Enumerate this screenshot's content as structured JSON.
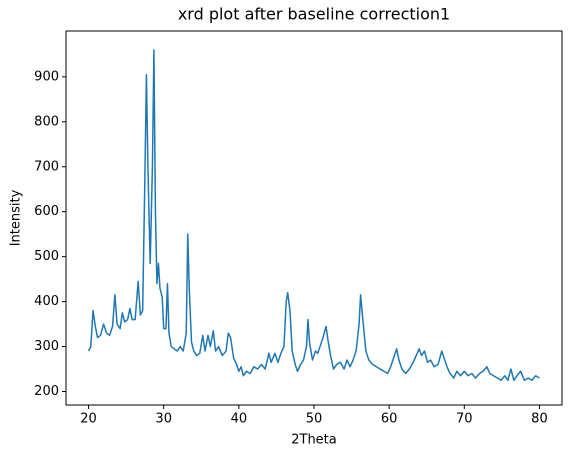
{
  "chart_data": {
    "type": "line",
    "title": "xrd plot after baseline correction1",
    "x_label": "2Theta",
    "y_label": "Intensity",
    "color": "#1f77b4",
    "x": [
      20,
      20.3,
      20.6,
      20.9,
      21.2,
      21.6,
      22,
      22.4,
      22.8,
      23.2,
      23.5,
      23.8,
      24.2,
      24.5,
      24.8,
      25.2,
      25.5,
      25.8,
      26.2,
      26.6,
      26.9,
      27.2,
      27.5,
      27.7,
      27.9,
      28.2,
      28.5,
      28.7,
      28.9,
      29.1,
      29.3,
      29.5,
      29.8,
      30,
      30.3,
      30.5,
      30.7,
      31,
      31.4,
      31.8,
      32.2,
      32.6,
      33,
      33.2,
      33.4,
      33.7,
      34,
      34.4,
      34.8,
      35.2,
      35.5,
      35.9,
      36.2,
      36.6,
      36.9,
      37.3,
      37.8,
      38.3,
      38.6,
      38.9,
      39.3,
      39.7,
      40,
      40.3,
      40.6,
      41,
      41.5,
      42,
      42.5,
      43,
      43.5,
      44,
      44.3,
      44.8,
      45.2,
      45.6,
      46,
      46.3,
      46.5,
      46.8,
      47.1,
      47.5,
      47.8,
      48.2,
      48.6,
      49,
      49.2,
      49.4,
      49.8,
      50.2,
      50.5,
      50.8,
      51.2,
      51.6,
      51.9,
      52.2,
      52.6,
      53,
      53.5,
      54,
      54.4,
      54.8,
      55.2,
      55.6,
      56,
      56.2,
      56.5,
      56.9,
      57.3,
      57.8,
      58.3,
      58.8,
      59.3,
      59.8,
      60.2,
      60.6,
      61,
      61.3,
      61.7,
      62.2,
      62.7,
      63.2,
      63.6,
      64,
      64.3,
      64.7,
      65.1,
      65.5,
      66,
      66.5,
      67,
      67.3,
      67.7,
      68.1,
      68.6,
      69,
      69.5,
      70,
      70.5,
      71,
      71.5,
      72,
      72.5,
      73,
      73.4,
      73.9,
      74.4,
      74.9,
      75.4,
      75.8,
      76.2,
      76.6,
      77,
      77.5,
      78,
      78.5,
      79,
      79.5,
      80
    ],
    "values": [
      290,
      300,
      380,
      345,
      320,
      325,
      350,
      330,
      325,
      345,
      415,
      350,
      340,
      375,
      355,
      360,
      385,
      360,
      360,
      445,
      370,
      380,
      680,
      905,
      700,
      485,
      700,
      960,
      600,
      440,
      485,
      430,
      410,
      340,
      340,
      440,
      330,
      300,
      295,
      290,
      300,
      290,
      330,
      550,
      430,
      310,
      290,
      280,
      285,
      325,
      290,
      325,
      300,
      335,
      290,
      300,
      280,
      290,
      330,
      320,
      275,
      260,
      245,
      255,
      235,
      245,
      240,
      255,
      250,
      260,
      250,
      285,
      265,
      285,
      265,
      285,
      300,
      400,
      420,
      380,
      290,
      260,
      245,
      260,
      270,
      300,
      360,
      310,
      270,
      290,
      285,
      300,
      320,
      345,
      310,
      280,
      250,
      260,
      265,
      250,
      270,
      255,
      270,
      290,
      350,
      415,
      360,
      290,
      270,
      260,
      255,
      250,
      245,
      240,
      255,
      275,
      295,
      270,
      250,
      240,
      250,
      265,
      280,
      295,
      280,
      290,
      265,
      270,
      255,
      260,
      290,
      275,
      255,
      240,
      230,
      245,
      235,
      245,
      235,
      240,
      230,
      240,
      245,
      255,
      240,
      235,
      230,
      225,
      235,
      225,
      250,
      225,
      235,
      245,
      225,
      230,
      225,
      235,
      230
    ],
    "xlim": [
      17,
      83
    ],
    "xticks": [
      20,
      30,
      40,
      50,
      60,
      70,
      80
    ],
    "ylim": [
      170,
      1002
    ],
    "yticks": [
      200,
      300,
      400,
      500,
      600,
      700,
      800,
      900
    ]
  }
}
